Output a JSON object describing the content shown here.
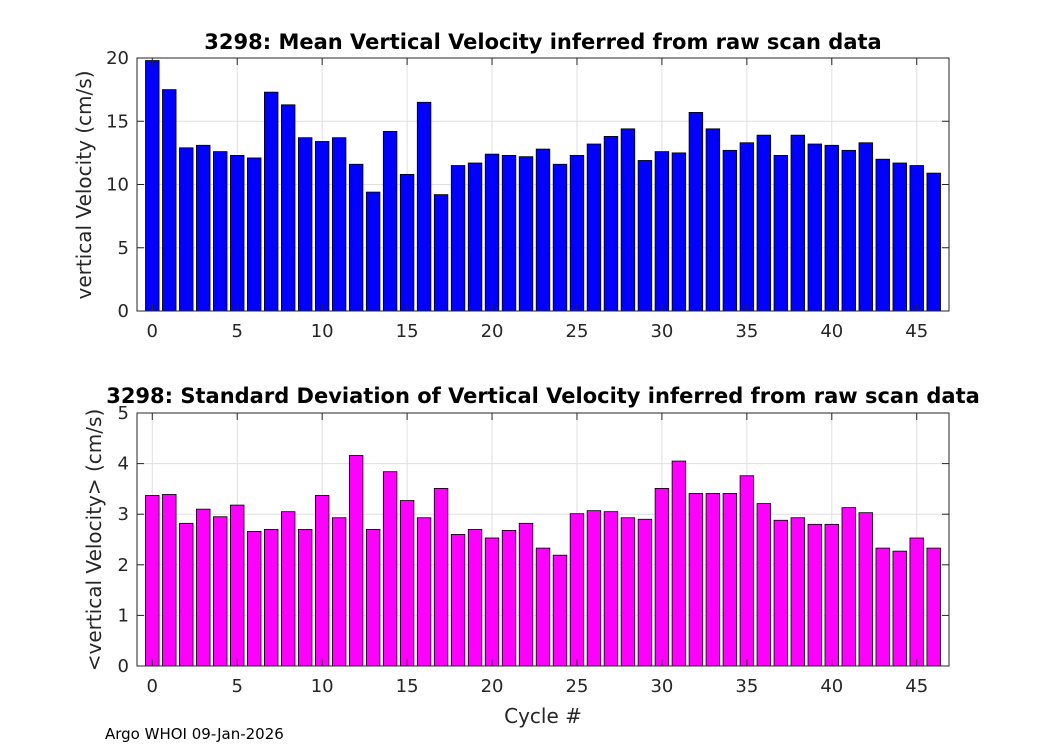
{
  "chart_data": [
    {
      "type": "bar",
      "title": "3298: Mean Vertical Velocity inferred from raw scan data",
      "xlabel": "",
      "ylabel": "vertical Velocity (cm/s)",
      "xlim": [
        -0.9,
        46.9
      ],
      "ylim": [
        0,
        20
      ],
      "xticks": [
        0,
        5,
        10,
        15,
        20,
        25,
        30,
        35,
        40,
        45
      ],
      "yticks": [
        0,
        5,
        10,
        15,
        20
      ],
      "grid": true,
      "color": "#0000ff",
      "x": [
        0,
        1,
        2,
        3,
        4,
        5,
        6,
        7,
        8,
        9,
        10,
        11,
        12,
        13,
        14,
        15,
        16,
        17,
        18,
        19,
        20,
        21,
        22,
        23,
        24,
        25,
        26,
        27,
        28,
        29,
        30,
        31,
        32,
        33,
        34,
        35,
        36,
        37,
        38,
        39,
        40,
        41,
        42,
        43,
        44,
        45,
        46
      ],
      "values": [
        19.8,
        17.5,
        12.9,
        13.1,
        12.6,
        12.3,
        12.1,
        17.3,
        16.3,
        13.7,
        13.4,
        13.7,
        11.6,
        9.4,
        14.2,
        10.8,
        16.5,
        9.2,
        11.5,
        11.7,
        12.4,
        12.3,
        12.2,
        12.8,
        11.6,
        12.3,
        13.2,
        13.8,
        14.4,
        11.9,
        12.6,
        12.5,
        15.7,
        14.4,
        12.7,
        13.3,
        13.9,
        12.3,
        13.9,
        13.2,
        13.1,
        12.7,
        13.3,
        12.0,
        11.7,
        11.5,
        10.9
      ]
    },
    {
      "type": "bar",
      "title": "3298: Standard Deviation of Vertical Velocity inferred from raw scan data",
      "xlabel": "Cycle #",
      "ylabel": "<vertical Velocity> (cm/s)",
      "xlim": [
        -0.9,
        46.9
      ],
      "ylim": [
        0,
        5
      ],
      "xticks": [
        0,
        5,
        10,
        15,
        20,
        25,
        30,
        35,
        40,
        45
      ],
      "yticks": [
        0,
        1,
        2,
        3,
        4,
        5
      ],
      "grid": true,
      "color": "#ff00ff",
      "x": [
        0,
        1,
        2,
        3,
        4,
        5,
        6,
        7,
        8,
        9,
        10,
        11,
        12,
        13,
        14,
        15,
        16,
        17,
        18,
        19,
        20,
        21,
        22,
        23,
        24,
        25,
        26,
        27,
        28,
        29,
        30,
        31,
        32,
        33,
        34,
        35,
        36,
        37,
        38,
        39,
        40,
        41,
        42,
        43,
        44,
        45,
        46
      ],
      "values": [
        3.37,
        3.39,
        2.82,
        3.1,
        2.95,
        3.18,
        2.66,
        2.7,
        3.05,
        2.7,
        3.37,
        2.93,
        4.16,
        2.7,
        3.84,
        3.27,
        2.93,
        3.51,
        2.6,
        2.7,
        2.53,
        2.68,
        2.82,
        2.33,
        2.19,
        3.01,
        3.07,
        3.05,
        2.93,
        2.9,
        3.51,
        4.05,
        3.41,
        3.41,
        3.41,
        3.76,
        3.21,
        2.88,
        2.93,
        2.8,
        2.8,
        3.13,
        3.03,
        2.33,
        2.27,
        2.53,
        2.33
      ]
    }
  ],
  "footer": {
    "text": "Argo WHOI 09-Jan-2026"
  }
}
